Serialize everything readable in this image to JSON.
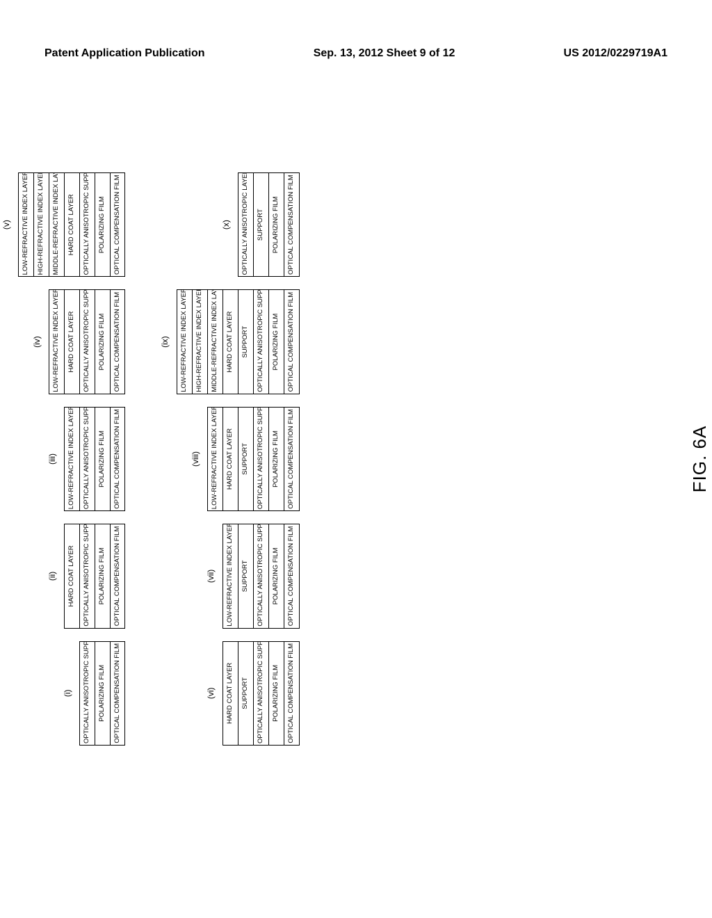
{
  "header": {
    "left": "Patent Application Publication",
    "center": "Sep. 13, 2012  Sheet 9 of 12",
    "right": "US 2012/0229719A1"
  },
  "figure_label": "FIG. 6A",
  "rows": [
    [
      {
        "label": "(i)",
        "layers": [
          "OPTICALLY ANISOTROPIC SUPPORT",
          "POLARIZING FILM",
          "OPTICAL COMPENSATION FILM"
        ]
      },
      {
        "label": "(ii)",
        "layers": [
          "HARD COAT LAYER",
          "OPTICALLY ANISOTROPIC SUPPORT",
          "POLARIZING FILM",
          "OPTICAL COMPENSATION FILM"
        ]
      },
      {
        "label": "(iii)",
        "layers": [
          "LOW-REFRACTIVE INDEX LAYER",
          "OPTICALLY ANISOTROPIC SUPPORT",
          "POLARIZING FILM",
          "OPTICAL COMPENSATION FILM"
        ]
      },
      {
        "label": "(iv)",
        "layers": [
          "LOW-REFRACTIVE INDEX LAYER",
          "HARD COAT LAYER",
          "OPTICALLY ANISOTROPIC SUPPORT",
          "POLARIZING FILM",
          "OPTICAL COMPENSATION FILM"
        ]
      },
      {
        "label": "(v)",
        "layers": [
          "LOW-REFRACTIVE INDEX LAYER",
          "HIGH-REFRACTIVE INDEX LAYER",
          "MIDDLE-REFRACTIVE INDEX LAYER",
          "HARD COAT LAYER",
          "OPTICALLY ANISOTROPIC SUPPORT",
          "POLARIZING FILM",
          "OPTICAL COMPENSATION FILM"
        ]
      }
    ],
    [
      {
        "label": "(vi)",
        "layers": [
          "HARD COAT LAYER",
          "SUPPORT",
          "OPTICALLY ANISOTROPIC SUPPORT",
          "POLARIZING FILM",
          "OPTICAL COMPENSATION FILM"
        ]
      },
      {
        "label": "(vii)",
        "layers": [
          "LOW-REFRACTIVE INDEX LAYER",
          "SUPPORT",
          "OPTICALLY ANISOTROPIC SUPPORT",
          "POLARIZING FILM",
          "OPTICAL COMPENSATION FILM"
        ]
      },
      {
        "label": "(viii)",
        "layers": [
          "LOW-REFRACTIVE INDEX LAYER",
          "HARD COAT LAYER",
          "SUPPORT",
          "OPTICALLY ANISOTROPIC SUPPORT",
          "POLARIZING FILM",
          "OPTICAL COMPENSATION FILM"
        ]
      },
      {
        "label": "(ix)",
        "layers": [
          "LOW-REFRACTIVE INDEX LAYER",
          "HIGH-REFRACTIVE INDEX LAYER",
          "MIDDLE-REFRACTIVE INDEX LAYER",
          "HARD COAT LAYER",
          "SUPPORT",
          "OPTICALLY ANISOTROPIC SUPPORT",
          "POLARIZING FILM",
          "OPTICAL COMPENSATION FILM"
        ]
      },
      {
        "label": "(x)",
        "layers": [
          "OPTICALLY ANISOTROPIC LAYER",
          "SUPPORT",
          "POLARIZING FILM",
          "OPTICAL COMPENSATION FILM"
        ]
      }
    ]
  ]
}
